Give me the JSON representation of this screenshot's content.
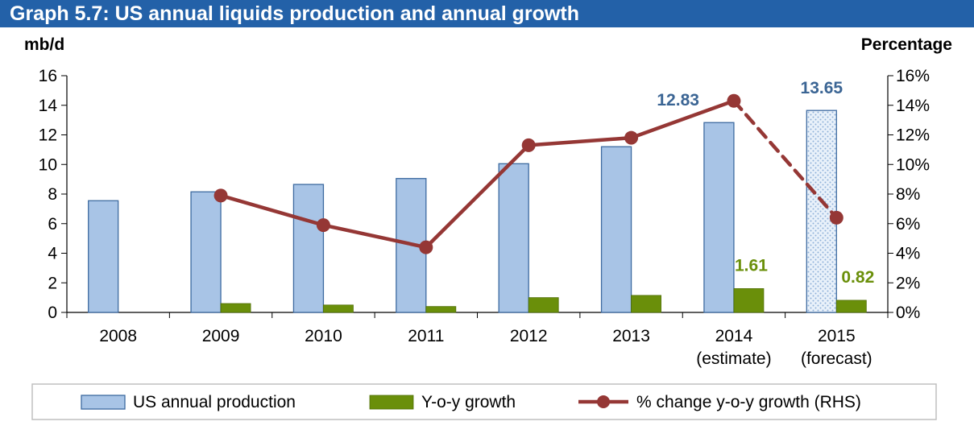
{
  "title": "Graph 5.7: US annual liquids production and annual growth",
  "chart_data": {
    "type": "bar+line",
    "left_axis": {
      "unit": "mb/d",
      "range": [
        0,
        16
      ],
      "ticks": [
        "0",
        "2",
        "4",
        "6",
        "8",
        "10",
        "12",
        "14",
        "16"
      ]
    },
    "right_axis": {
      "unit": "Percentage",
      "range": [
        0,
        16
      ],
      "ticks": [
        "0%",
        "2%",
        "4%",
        "6%",
        "8%",
        "10%",
        "12%",
        "14%",
        "16%"
      ]
    },
    "categories": [
      {
        "year": "2008",
        "note": ""
      },
      {
        "year": "2009",
        "note": ""
      },
      {
        "year": "2010",
        "note": ""
      },
      {
        "year": "2011",
        "note": ""
      },
      {
        "year": "2012",
        "note": ""
      },
      {
        "year": "2013",
        "note": ""
      },
      {
        "year": "2014",
        "note": "(estimate)"
      },
      {
        "year": "2015",
        "note": "(forecast)"
      }
    ],
    "series": [
      {
        "name": "US annual production",
        "kind": "bar",
        "axis": "left",
        "color": "#a8c4e6",
        "values": [
          7.55,
          8.15,
          8.65,
          9.05,
          10.05,
          11.2,
          12.83,
          13.65
        ]
      },
      {
        "name": "Y-o-y growth",
        "kind": "bar",
        "axis": "left",
        "color": "#6a8f0a",
        "values": [
          null,
          0.6,
          0.5,
          0.4,
          1.0,
          1.15,
          1.61,
          0.82
        ]
      },
      {
        "name": "% change y-o-y growth (RHS)",
        "kind": "line",
        "axis": "right",
        "color": "#953735",
        "values": [
          null,
          7.9,
          5.9,
          4.4,
          11.3,
          11.8,
          14.3,
          6.4
        ]
      }
    ],
    "data_labels": [
      {
        "series": 0,
        "index": 6,
        "text": "12.83"
      },
      {
        "series": 0,
        "index": 7,
        "text": "13.65"
      },
      {
        "series": 1,
        "index": 6,
        "text": "1.61"
      },
      {
        "series": 1,
        "index": 7,
        "text": "0.82"
      }
    ],
    "forecast_index": 7,
    "legend_position": "bottom"
  }
}
